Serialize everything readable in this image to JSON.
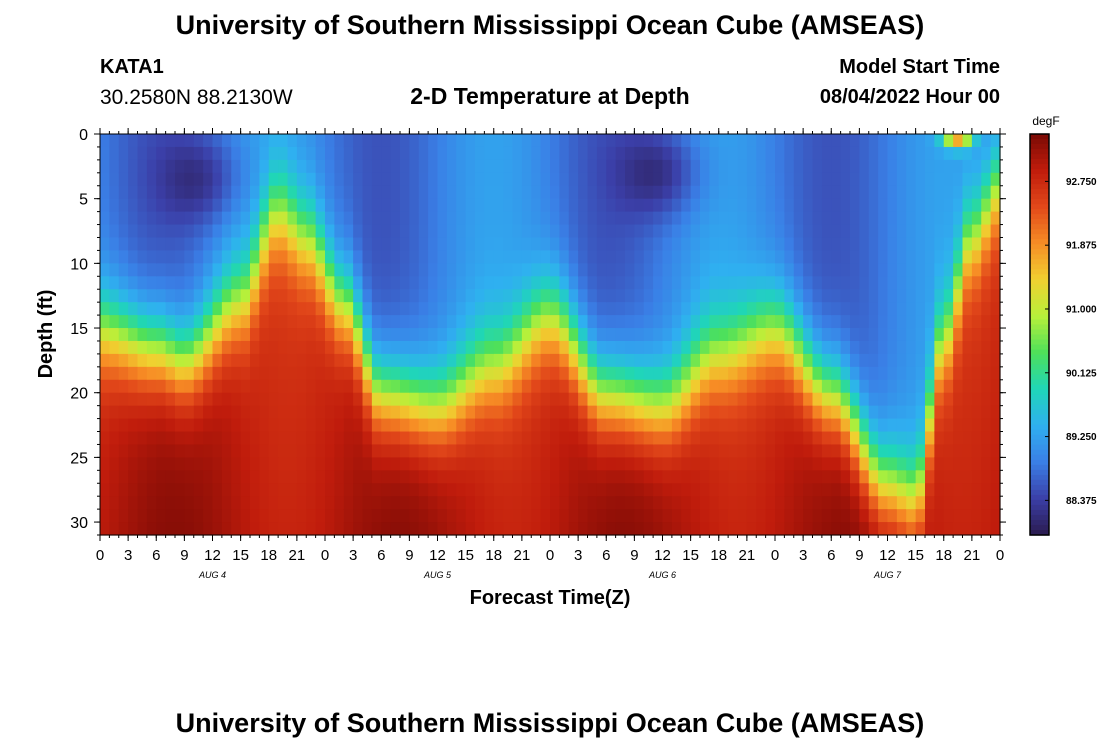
{
  "header": {
    "title": "University of Southern Mississippi Ocean Cube (AMSEAS)",
    "station_name": "KATA1",
    "station_coords": "30.2580N  88.2130W",
    "plot_title": "2-D Temperature at Depth",
    "model_start_label": "Model Start Time",
    "model_start_value": "08/04/2022 Hour 00"
  },
  "footer": {
    "title": "University of Southern Mississippi Ocean Cube (AMSEAS)"
  },
  "chart_data": {
    "type": "heatmap",
    "title": "2-D Temperature at Depth",
    "xlabel": "Forecast Time(Z)",
    "ylabel": "Depth (ft)",
    "x_range_hours": [
      0,
      96
    ],
    "x_tick_labels": [
      "0",
      "3",
      "6",
      "9",
      "12",
      "15",
      "18",
      "21",
      "0",
      "3",
      "6",
      "9",
      "12",
      "15",
      "18",
      "21",
      "0",
      "3",
      "6",
      "9",
      "12",
      "15",
      "18",
      "21",
      "0",
      "3",
      "6",
      "9",
      "12",
      "15",
      "18",
      "21",
      "0"
    ],
    "day_labels": [
      {
        "label": "AUG 4",
        "hour": 12
      },
      {
        "label": "AUG 5",
        "hour": 36
      },
      {
        "label": "AUG 6",
        "hour": 60
      },
      {
        "label": "AUG 7",
        "hour": 84
      }
    ],
    "y_range_ft": [
      0,
      31
    ],
    "y_ticks": [
      0,
      5,
      10,
      15,
      20,
      25,
      30
    ],
    "colorbar": {
      "units": "degF",
      "min": 87.9,
      "max": 93.4,
      "tick_values": [
        92.75,
        91.875,
        91.0,
        90.125,
        89.25,
        88.375
      ],
      "tick_labels": [
        "92.750",
        "91.875",
        "91.000",
        "90.125",
        "89.250",
        "88.375"
      ],
      "colors": [
        "#2a1a4e",
        "#3b3fa8",
        "#3a7fe6",
        "#2fb0f0",
        "#1fd6b8",
        "#4ee05a",
        "#b7f03a",
        "#f0d030",
        "#f78d25",
        "#e2481a",
        "#c01c0c",
        "#7a0a05"
      ]
    },
    "thermocline": {
      "description": "depth (ft) of transition from cool upper layer (~88.5-89 degF) to warm bottom layer (~92.5-93 degF) at each forecast hour",
      "hours": [
        0,
        6,
        9,
        15,
        19,
        22,
        26,
        30,
        36,
        42,
        48,
        54,
        60,
        66,
        72,
        78,
        84,
        87,
        90,
        93,
        96
      ],
      "depth_ft": [
        15,
        16.5,
        17.5,
        13,
        6,
        8,
        13,
        20,
        21,
        18,
        14,
        20,
        21,
        17,
        15,
        20,
        27,
        28,
        16,
        8,
        4
      ]
    },
    "surface_warm_spots": [
      {
        "hour": 91.5,
        "depth_ft": 0.3,
        "value": 91.5
      }
    ],
    "cold_cores": [
      {
        "hour": 11,
        "depth_ft": 3.5,
        "value": 88.0
      },
      {
        "hour": 60,
        "depth_ft": 3,
        "value": 87.9
      }
    ]
  }
}
